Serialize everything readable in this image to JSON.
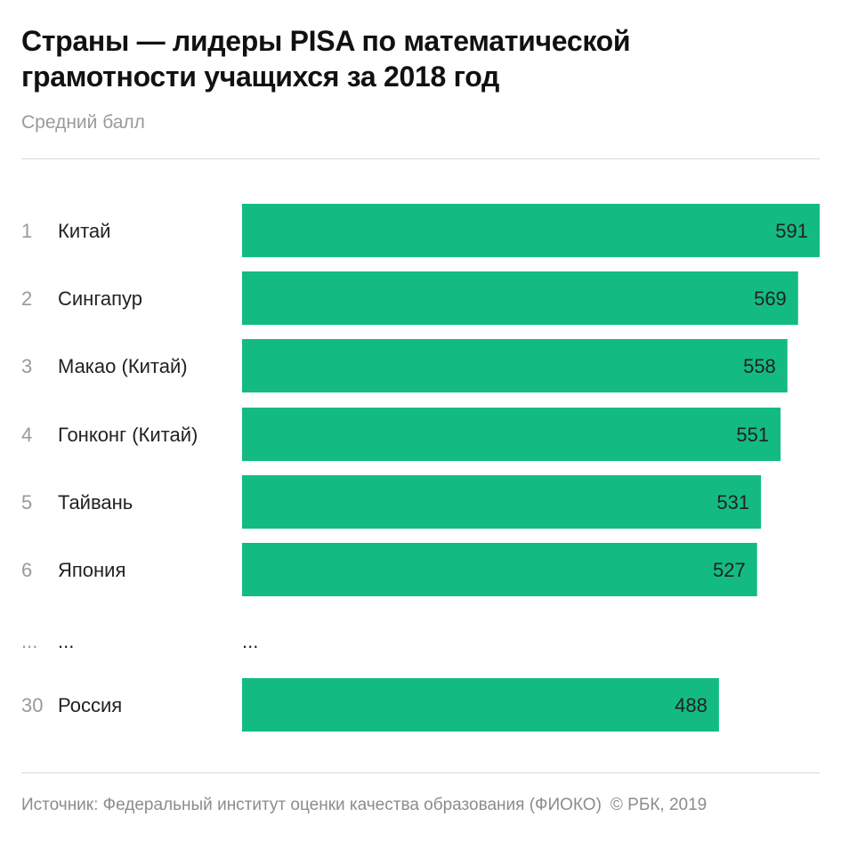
{
  "header": {
    "title_line1": "Страны — лидеры PISA по математической",
    "title_line2": "грамотности учащихся за 2018 год",
    "subtitle": "Средний балл"
  },
  "footer": {
    "source": "Источник: Федеральный институт оценки качества образования (ФИОКО)",
    "copyright": "© РБК, 2019"
  },
  "colors": {
    "bar": "#13bb83",
    "rank": "#9a9a9a",
    "label": "#222222",
    "value": "#222222"
  },
  "chart_data": {
    "type": "bar",
    "orientation": "horizontal",
    "title": "Страны — лидеры PISA по математической грамотности учащихся за 2018 год",
    "subtitle": "Средний балл",
    "rows": [
      {
        "rank": "1",
        "country": "Китай",
        "value": 591
      },
      {
        "rank": "2",
        "country": "Сингапур",
        "value": 569
      },
      {
        "rank": "3",
        "country": "Макао (Китай)",
        "value": 558
      },
      {
        "rank": "4",
        "country": "Гонконг (Китай)",
        "value": 551
      },
      {
        "rank": "5",
        "country": "Тайвань",
        "value": 531
      },
      {
        "rank": "6",
        "country": "Япония",
        "value": 527
      },
      {
        "rank": "...",
        "country": "...",
        "value": null,
        "value_text": "..."
      },
      {
        "rank": "30",
        "country": "Россия",
        "value": 488
      }
    ],
    "xlim": [
      0,
      591
    ],
    "grid": false,
    "legend": "none"
  }
}
